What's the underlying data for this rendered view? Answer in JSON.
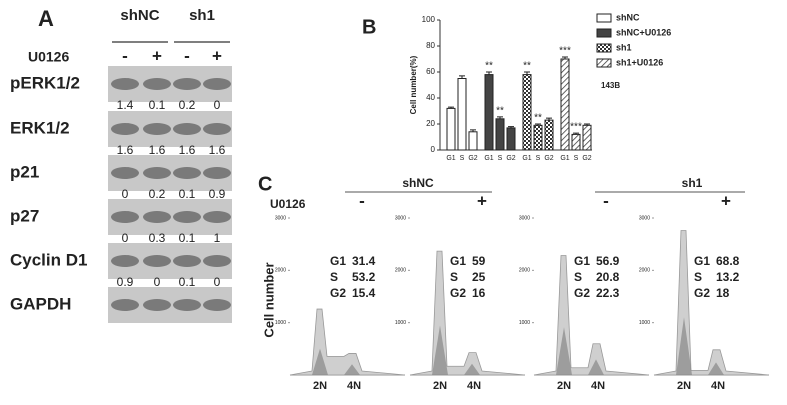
{
  "panel_a": {
    "label": "A",
    "groups": [
      "shNC",
      "sh1"
    ],
    "treatment": "U0126",
    "signs": [
      "-",
      "+",
      "-",
      "+"
    ],
    "rows": [
      {
        "name": "pERK1/2",
        "quant": [
          1.4,
          0.1,
          0.2,
          0
        ]
      },
      {
        "name": "ERK1/2",
        "quant": [
          1.6,
          1.6,
          1.6,
          1.6
        ]
      },
      {
        "name": "p21",
        "quant": [
          0,
          0.2,
          0.1,
          0.9
        ]
      },
      {
        "name": "p27",
        "quant": [
          0,
          0.3,
          0.1,
          1
        ]
      },
      {
        "name": "Cyclin D1",
        "quant": [
          0.9,
          0,
          0.1,
          0
        ]
      },
      {
        "name": "GAPDH"
      }
    ]
  },
  "chart_data": {
    "type": "bar",
    "label": "B",
    "annotation": "143B",
    "y_label": "Cell number(%)",
    "categories": [
      "G1",
      "S",
      "G2"
    ],
    "ylim": [
      0,
      100
    ],
    "yticks": [
      0,
      20,
      40,
      60,
      80,
      100
    ],
    "series": [
      {
        "name": "shNC",
        "color": "#ffffff",
        "pattern": "solid",
        "values": [
          32,
          55,
          14
        ],
        "errors": [
          1,
          2,
          1.5
        ]
      },
      {
        "name": "shNC+U0126",
        "color": "#444444",
        "pattern": "solid",
        "values": [
          58,
          24,
          17
        ],
        "errors": [
          2,
          1.5,
          1
        ],
        "stars": [
          "**",
          "**",
          null
        ]
      },
      {
        "name": "sh1",
        "color": "#333333",
        "pattern": "checker",
        "values": [
          58,
          19,
          23
        ],
        "errors": [
          2,
          1,
          1.5
        ],
        "stars": [
          "**",
          "**",
          null
        ]
      },
      {
        "name": "sh1+U0126",
        "color": "#333333",
        "pattern": "hatch",
        "values": [
          70,
          12,
          19
        ],
        "errors": [
          1.5,
          1,
          1
        ],
        "stars": [
          "***",
          "***",
          null
        ]
      }
    ]
  },
  "panel_c": {
    "label": "C",
    "groups": [
      "shNC",
      "sh1"
    ],
    "treatment": "U0126",
    "signs": [
      "-",
      "+",
      "-",
      "+"
    ],
    "y_label": "Cell number",
    "ylim": [
      0,
      3000
    ],
    "yticks": [
      1000,
      2000,
      3000
    ],
    "x_labels": [
      "2N",
      "4N"
    ],
    "phase_names": [
      "G1",
      "S",
      "G2"
    ],
    "histograms": [
      [
        31.4,
        53.2,
        15.4
      ],
      [
        59,
        25,
        16
      ],
      [
        56.9,
        20.8,
        22.3
      ],
      [
        68.8,
        13.2,
        18
      ]
    ]
  }
}
